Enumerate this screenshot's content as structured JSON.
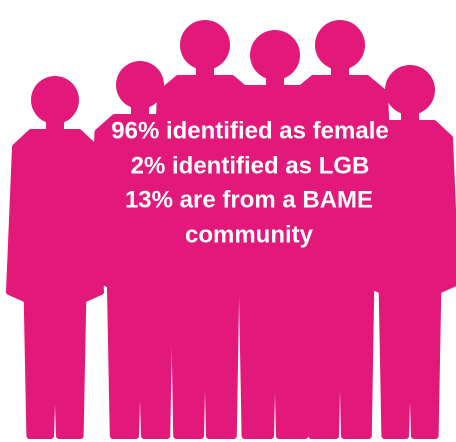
{
  "text": {
    "lines": [
      "96% identified as female",
      "2% identified as LGB",
      "13% are from a BAME",
      "community"
    ]
  }
}
